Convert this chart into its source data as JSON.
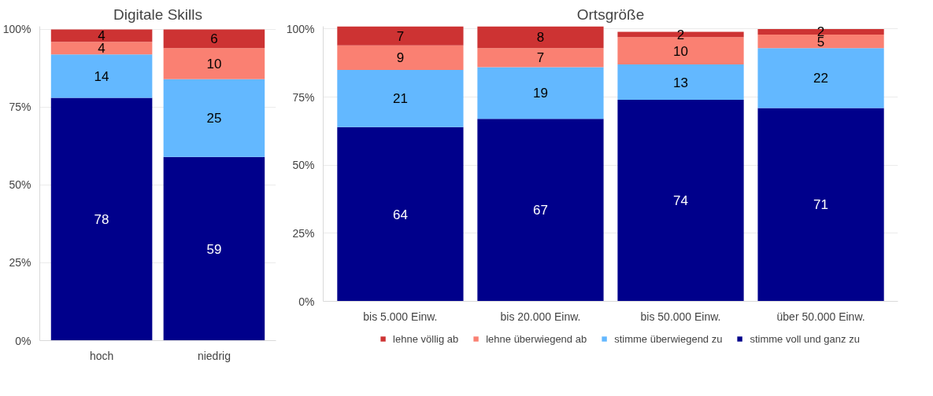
{
  "chart_data": [
    {
      "type": "bar",
      "title": "Digitale Skills",
      "categories": [
        "hoch",
        "niedrig"
      ],
      "stacked": true,
      "data_labels": true,
      "grid": "y",
      "legend": false,
      "ylim": [
        0,
        101
      ],
      "yticks": [
        {
          "value": 0,
          "label": "0%"
        },
        {
          "value": 25,
          "label": "25%"
        },
        {
          "value": 50,
          "label": "50%"
        },
        {
          "value": 75,
          "label": "75%"
        },
        {
          "value": 100,
          "label": "100%"
        }
      ],
      "series": [
        {
          "color": "#00008b",
          "values": [
            78,
            59
          ]
        },
        {
          "color": "#63b8ff",
          "values": [
            14,
            25
          ]
        },
        {
          "color": "#fa8072",
          "values": [
            4,
            10
          ]
        },
        {
          "color": "#cd3333",
          "values": [
            4,
            6
          ]
        }
      ]
    },
    {
      "type": "bar",
      "title": "Ortsgröße",
      "categories": [
        "bis 5.000 Einw.",
        "bis 20.000 Einw.",
        "bis 50.000 Einw.",
        "über 50.000 Einw."
      ],
      "stacked": true,
      "data_labels": true,
      "grid": "y",
      "legend": "bottom",
      "ylim": [
        0,
        101
      ],
      "yticks": [
        {
          "value": 0,
          "label": "0%"
        },
        {
          "value": 25,
          "label": "25%"
        },
        {
          "value": 50,
          "label": "50%"
        },
        {
          "value": 75,
          "label": "75%"
        },
        {
          "value": 100,
          "label": "100%"
        }
      ],
      "series": [
        {
          "name": "stimme voll und ganz zu",
          "color": "#00008b",
          "values": [
            64,
            67,
            74,
            71
          ]
        },
        {
          "name": "stimme überwiegend zu",
          "color": "#63b8ff",
          "values": [
            21,
            19,
            13,
            22
          ]
        },
        {
          "name": "lehne überwiegend ab",
          "color": "#fa8072",
          "values": [
            9,
            7,
            10,
            5
          ]
        },
        {
          "name": "lehne völlig ab",
          "color": "#cd3333",
          "values": [
            7,
            8,
            2,
            2
          ]
        }
      ]
    }
  ]
}
